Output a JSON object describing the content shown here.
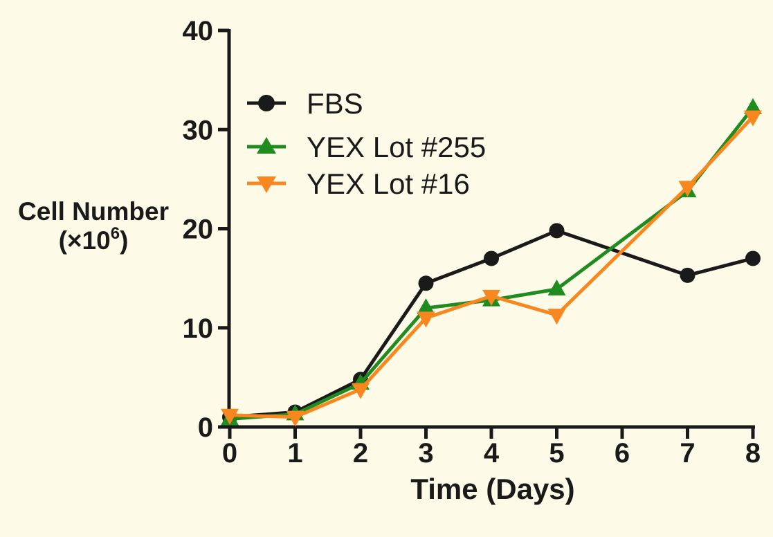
{
  "figure": {
    "background_color": "#FDFAE8",
    "axis_color": "#1A1A1A"
  },
  "chart_data": {
    "type": "line",
    "title": "",
    "xlabel": "Time (Days)",
    "ylabel": "Cell Number (×10⁶)",
    "ylabel_line1": "Cell Number",
    "ylabel_line2": {
      "prefix": "(×10",
      "sup": "6",
      "suffix": ")"
    },
    "xlim": [
      0,
      8
    ],
    "ylim": [
      0,
      40
    ],
    "xticks": [
      "0",
      "1",
      "2",
      "3",
      "4",
      "5",
      "6",
      "7",
      "8"
    ],
    "yticks": [
      "0",
      "10",
      "20",
      "30",
      "40"
    ],
    "grid": false,
    "legend_position": "upper left inside plot",
    "x": [
      0,
      1,
      2,
      3,
      4,
      5,
      7,
      8
    ],
    "series": [
      {
        "name": "FBS",
        "color": "#1A1A1A",
        "marker": "circle",
        "values": [
          1.0,
          1.5,
          4.8,
          14.5,
          17.0,
          19.8,
          15.3,
          17.0
        ]
      },
      {
        "name": "YEX Lot #255",
        "color": "#1E8C1E",
        "marker": "triangle-up",
        "values": [
          0.8,
          1.3,
          4.4,
          12.0,
          12.8,
          13.9,
          23.8,
          32.2
        ]
      },
      {
        "name": "YEX Lot #16",
        "color": "#F7871E",
        "marker": "triangle-down",
        "values": [
          1.2,
          1.0,
          3.8,
          11.0,
          13.2,
          11.3,
          24.2,
          31.3
        ]
      }
    ]
  }
}
